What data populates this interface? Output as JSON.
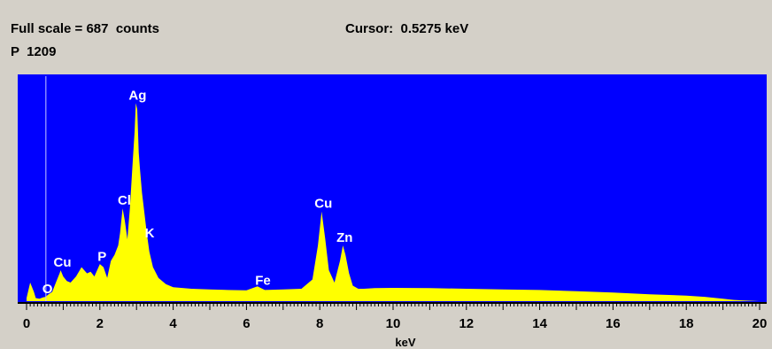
{
  "header": {
    "full_scale": "Full scale = 687  counts",
    "cursor": "Cursor:  0.5275 keV",
    "peak": "P  1209"
  },
  "colors": {
    "window_bg": "#d4d0c8",
    "plot_bg": "#0000ff",
    "spectrum": "#ffff00",
    "cursor_line": "#c8c8ff",
    "label": "#ffffff"
  },
  "chart_data": {
    "type": "area",
    "title": "",
    "xlabel": "keV",
    "ylabel": "",
    "xlim": [
      0,
      20
    ],
    "ylim": [
      0,
      687
    ],
    "full_scale_counts": 687,
    "cursor_kev": 0.5275,
    "x_ticks": [
      0,
      2,
      4,
      6,
      8,
      10,
      12,
      14,
      16,
      18,
      20
    ],
    "x_tick_labels": [
      "0",
      "2",
      "4",
      "6",
      "8",
      "10",
      "12",
      "14",
      "16",
      "18",
      "20"
    ],
    "grid": false,
    "legend": "none",
    "series": [
      {
        "x": [
          0.0,
          0.1,
          0.2,
          0.25,
          0.35,
          0.45,
          0.52,
          0.6,
          0.7,
          0.8,
          0.9,
          0.93,
          1.0,
          1.1,
          1.2,
          1.35,
          1.5,
          1.65,
          1.75,
          1.85,
          2.0,
          2.1,
          2.2,
          2.3,
          2.4,
          2.5,
          2.55,
          2.62,
          2.68,
          2.75,
          2.82,
          2.9,
          2.95,
          2.98,
          3.02,
          3.06,
          3.1,
          3.15,
          3.2,
          3.28,
          3.35,
          3.45,
          3.6,
          3.8,
          4.0,
          4.5,
          5.0,
          5.5,
          6.0,
          6.3,
          6.5,
          7.0,
          7.5,
          7.8,
          7.95,
          8.05,
          8.15,
          8.25,
          8.4,
          8.55,
          8.63,
          8.7,
          8.8,
          8.9,
          9.05,
          9.2,
          9.5,
          10.0,
          11.0,
          12.0,
          13.0,
          14.0,
          15.0,
          16.0,
          17.0,
          18.0,
          18.5,
          19.0,
          19.3,
          19.6,
          20.0
        ],
        "y": [
          10,
          60,
          30,
          10,
          8,
          12,
          14,
          22,
          30,
          60,
          90,
          100,
          80,
          65,
          60,
          80,
          110,
          90,
          95,
          80,
          120,
          110,
          75,
          130,
          150,
          180,
          220,
          300,
          260,
          200,
          300,
          460,
          550,
          640,
          620,
          480,
          420,
          350,
          300,
          220,
          160,
          110,
          75,
          55,
          45,
          40,
          38,
          36,
          35,
          48,
          36,
          38,
          40,
          70,
          180,
          290,
          200,
          100,
          60,
          130,
          180,
          150,
          90,
          50,
          40,
          40,
          42,
          43,
          42,
          40,
          38,
          36,
          32,
          28,
          22,
          18,
          14,
          8,
          4,
          2,
          0
        ]
      }
    ],
    "peak_labels": [
      {
        "text": "O",
        "kev": 0.52
      },
      {
        "text": "Cu",
        "kev": 0.93
      },
      {
        "text": "P",
        "kev": 2.01
      },
      {
        "text": "Cl",
        "kev": 2.62
      },
      {
        "text": "Ag",
        "kev": 2.98
      },
      {
        "text": "K",
        "kev": 3.31
      },
      {
        "text": "Fe",
        "kev": 6.4
      },
      {
        "text": "Cu",
        "kev": 8.05
      },
      {
        "text": "Zn",
        "kev": 8.63
      }
    ]
  }
}
